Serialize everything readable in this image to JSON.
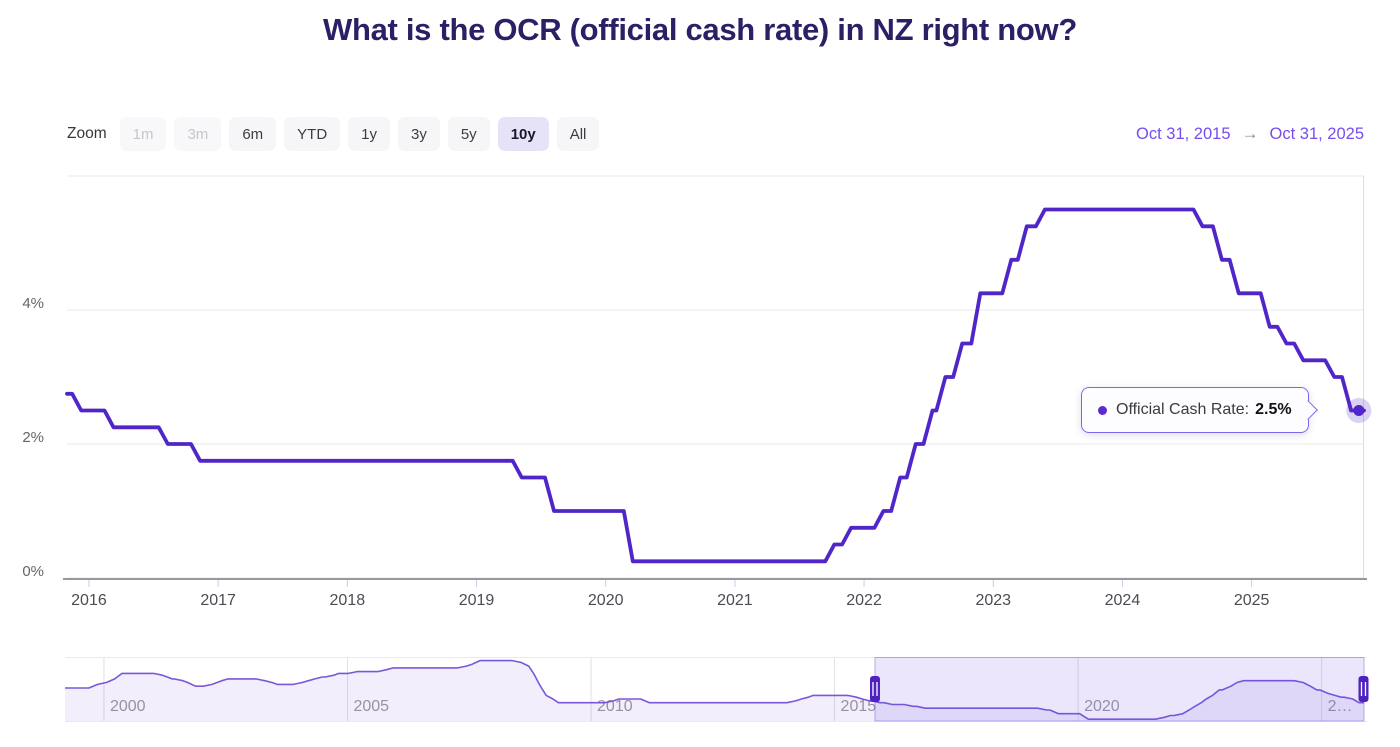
{
  "page": {
    "title": "What is the OCR (official cash rate) in NZ right now?"
  },
  "toolbar": {
    "zoom_label": "Zoom",
    "buttons": [
      {
        "label": "1m",
        "state": "disabled"
      },
      {
        "label": "3m",
        "state": "disabled"
      },
      {
        "label": "6m",
        "state": "normal"
      },
      {
        "label": "YTD",
        "state": "normal"
      },
      {
        "label": "1y",
        "state": "normal"
      },
      {
        "label": "3y",
        "state": "normal"
      },
      {
        "label": "5y",
        "state": "normal"
      },
      {
        "label": "10y",
        "state": "selected"
      },
      {
        "label": "All",
        "state": "normal"
      }
    ],
    "range": {
      "from": "Oct 31, 2015",
      "arrow": "→",
      "to": "Oct 31, 2025"
    }
  },
  "tooltip": {
    "bullet_icon": "circle",
    "series_label": "Official Cash Rate:",
    "value": "2.5%"
  },
  "colors": {
    "title": "#2b2065",
    "line": "#5126c9",
    "range_text": "#764df0",
    "tooltip_border": "#8266e8",
    "selected_button_bg": "#e6e2f8",
    "grid": "#e8e8e8",
    "axis_line": "#97979c",
    "navigator_mask": "rgba(114,77,232,0.14)",
    "handle": "#4e22c0"
  },
  "chart_data": {
    "type": "line",
    "title": "What is the OCR (official cash rate) in NZ right now?",
    "xlabel": "",
    "ylabel": "",
    "grid": true,
    "legend_position": "tooltip-only",
    "series_name": "Official Cash Rate",
    "unit": "%",
    "xlim": [
      2015.83,
      2025.87
    ],
    "ylim": [
      0,
      6.2
    ],
    "y_ticks": [
      {
        "value": 0,
        "label": "0%"
      },
      {
        "value": 2,
        "label": "2%"
      },
      {
        "value": 4,
        "label": "4%"
      },
      {
        "value": 6,
        "label": ""
      }
    ],
    "x_ticks": [
      {
        "year": 2016,
        "label": "2016"
      },
      {
        "year": 2017,
        "label": "2017"
      },
      {
        "year": 2018,
        "label": "2018"
      },
      {
        "year": 2019,
        "label": "2019"
      },
      {
        "year": 2020,
        "label": "2020"
      },
      {
        "year": 2021,
        "label": "2021"
      },
      {
        "year": 2022,
        "label": "2022"
      },
      {
        "year": 2023,
        "label": "2023"
      },
      {
        "year": 2024,
        "label": "2024"
      },
      {
        "year": 2025,
        "label": "2025"
      }
    ],
    "step_points": [
      [
        2015.83,
        2.75
      ],
      [
        2015.94,
        2.5
      ],
      [
        2016.19,
        2.25
      ],
      [
        2016.61,
        2.0
      ],
      [
        2016.86,
        1.75
      ],
      [
        2019.35,
        1.5
      ],
      [
        2019.6,
        1.0
      ],
      [
        2020.21,
        0.25
      ],
      [
        2021.77,
        0.5
      ],
      [
        2021.9,
        0.75
      ],
      [
        2022.15,
        1.0
      ],
      [
        2022.28,
        1.5
      ],
      [
        2022.4,
        2.0
      ],
      [
        2022.53,
        2.5
      ],
      [
        2022.63,
        3.0
      ],
      [
        2022.76,
        3.5
      ],
      [
        2022.9,
        4.25
      ],
      [
        2023.14,
        4.75
      ],
      [
        2023.26,
        5.25
      ],
      [
        2023.4,
        5.5
      ],
      [
        2024.62,
        5.25
      ],
      [
        2024.77,
        4.75
      ],
      [
        2024.9,
        4.25
      ],
      [
        2025.14,
        3.75
      ],
      [
        2025.27,
        3.5
      ],
      [
        2025.4,
        3.25
      ],
      [
        2025.64,
        3.0
      ],
      [
        2025.77,
        2.5
      ]
    ],
    "last_point": {
      "x": 2025.83,
      "y": 2.5,
      "label": "2.5%"
    },
    "navigator": {
      "xlim": [
        1999.2,
        2025.87
      ],
      "ylim": [
        0,
        8.6
      ],
      "selected_range": [
        2015.83,
        2025.87
      ],
      "x_ticks": [
        {
          "year": 2000,
          "label": "2000"
        },
        {
          "year": 2005,
          "label": "2005"
        },
        {
          "year": 2010,
          "label": "2010"
        },
        {
          "year": 2015,
          "label": "2015"
        },
        {
          "year": 2020,
          "label": "2020"
        },
        {
          "year": 2025,
          "label": "2…"
        }
      ],
      "step_points": [
        [
          1999.2,
          4.5
        ],
        [
          1999.87,
          5.0
        ],
        [
          2000.05,
          5.25
        ],
        [
          2000.22,
          5.75
        ],
        [
          2000.37,
          6.5
        ],
        [
          2001.2,
          6.25
        ],
        [
          2001.3,
          6.0
        ],
        [
          2001.4,
          5.75
        ],
        [
          2001.62,
          5.5
        ],
        [
          2001.72,
          5.25
        ],
        [
          2001.88,
          4.75
        ],
        [
          2002.22,
          5.0
        ],
        [
          2002.32,
          5.25
        ],
        [
          2002.42,
          5.5
        ],
        [
          2002.55,
          5.75
        ],
        [
          2003.3,
          5.5
        ],
        [
          2003.45,
          5.25
        ],
        [
          2003.56,
          5.0
        ],
        [
          2004.07,
          5.25
        ],
        [
          2004.2,
          5.5
        ],
        [
          2004.33,
          5.75
        ],
        [
          2004.48,
          6.0
        ],
        [
          2004.72,
          6.25
        ],
        [
          2004.82,
          6.5
        ],
        [
          2005.2,
          6.75
        ],
        [
          2005.8,
          7.0
        ],
        [
          2005.94,
          7.25
        ],
        [
          2007.44,
          7.5
        ],
        [
          2007.56,
          7.75
        ],
        [
          2007.64,
          8.0
        ],
        [
          2007.72,
          8.25
        ],
        [
          2008.56,
          8.0
        ],
        [
          2008.72,
          7.5
        ],
        [
          2008.82,
          6.5
        ],
        [
          2008.94,
          5.0
        ],
        [
          2009.08,
          3.5
        ],
        [
          2009.22,
          3.0
        ],
        [
          2009.33,
          2.5
        ],
        [
          2010.46,
          2.75
        ],
        [
          2010.57,
          3.0
        ],
        [
          2011.2,
          2.5
        ],
        [
          2014.2,
          2.75
        ],
        [
          2014.32,
          3.0
        ],
        [
          2014.46,
          3.25
        ],
        [
          2014.56,
          3.5
        ],
        [
          2015.45,
          3.25
        ],
        [
          2015.57,
          3.0
        ],
        [
          2015.72,
          2.75
        ],
        [
          2015.94,
          2.5
        ],
        [
          2016.19,
          2.25
        ],
        [
          2016.61,
          2.0
        ],
        [
          2016.86,
          1.75
        ],
        [
          2019.35,
          1.5
        ],
        [
          2019.6,
          1.0
        ],
        [
          2020.21,
          0.25
        ],
        [
          2021.77,
          0.5
        ],
        [
          2021.9,
          0.75
        ],
        [
          2022.15,
          1.0
        ],
        [
          2022.28,
          1.5
        ],
        [
          2022.4,
          2.0
        ],
        [
          2022.53,
          2.5
        ],
        [
          2022.63,
          3.0
        ],
        [
          2022.76,
          3.5
        ],
        [
          2022.9,
          4.25
        ],
        [
          2023.14,
          4.75
        ],
        [
          2023.26,
          5.25
        ],
        [
          2023.4,
          5.5
        ],
        [
          2024.62,
          5.25
        ],
        [
          2024.77,
          4.75
        ],
        [
          2024.9,
          4.25
        ],
        [
          2025.14,
          3.75
        ],
        [
          2025.27,
          3.5
        ],
        [
          2025.4,
          3.25
        ],
        [
          2025.64,
          3.0
        ],
        [
          2025.77,
          2.5
        ]
      ]
    }
  }
}
